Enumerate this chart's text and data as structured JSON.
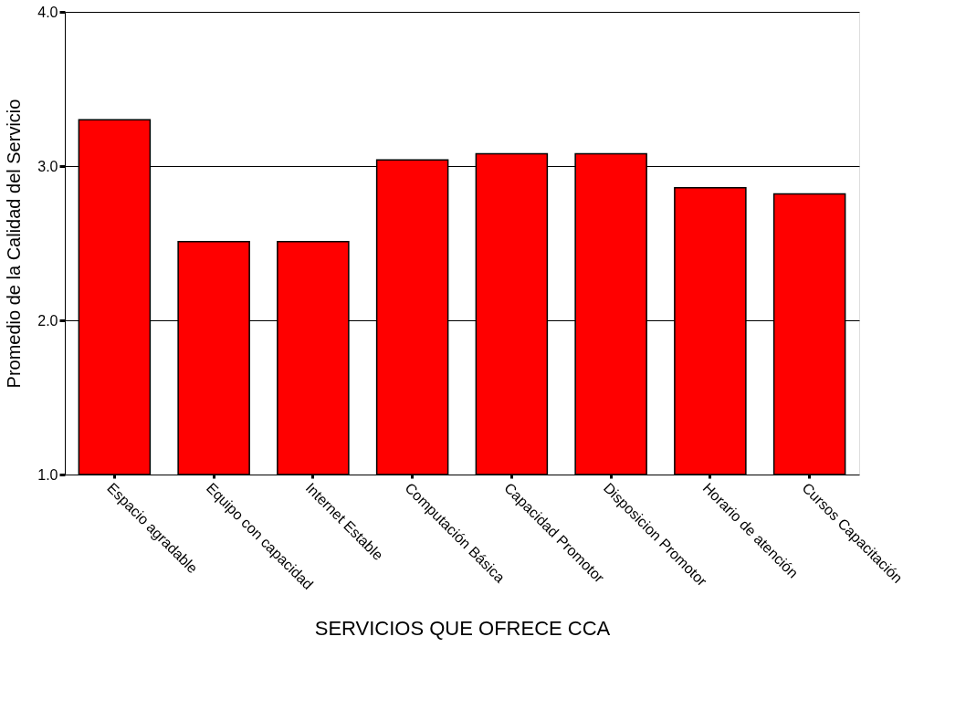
{
  "chart_data": {
    "type": "bar",
    "xlabel": "SERVICIOS QUE OFRECE CCA",
    "ylabel": "Promedio de la Calidad del Servicio",
    "categories": [
      "Espacio agradable",
      "Equipo con capacidad",
      "Internet Estable",
      "Computación Básica",
      "Capacidad Promotor",
      "Disposicion Promotor",
      "Horario de atención",
      "Cursos Capacitación"
    ],
    "values": [
      3.3,
      2.51,
      2.51,
      3.04,
      3.08,
      3.08,
      2.86,
      2.82
    ],
    "color": "#ff0000",
    "ylim": [
      1,
      4
    ],
    "yticks": [
      {
        "value": 1,
        "label": "1.0"
      },
      {
        "value": 2,
        "label": "2.0"
      },
      {
        "value": 3,
        "label": "3.0"
      },
      {
        "value": 4,
        "label": "4.0"
      }
    ],
    "grid": "y"
  }
}
